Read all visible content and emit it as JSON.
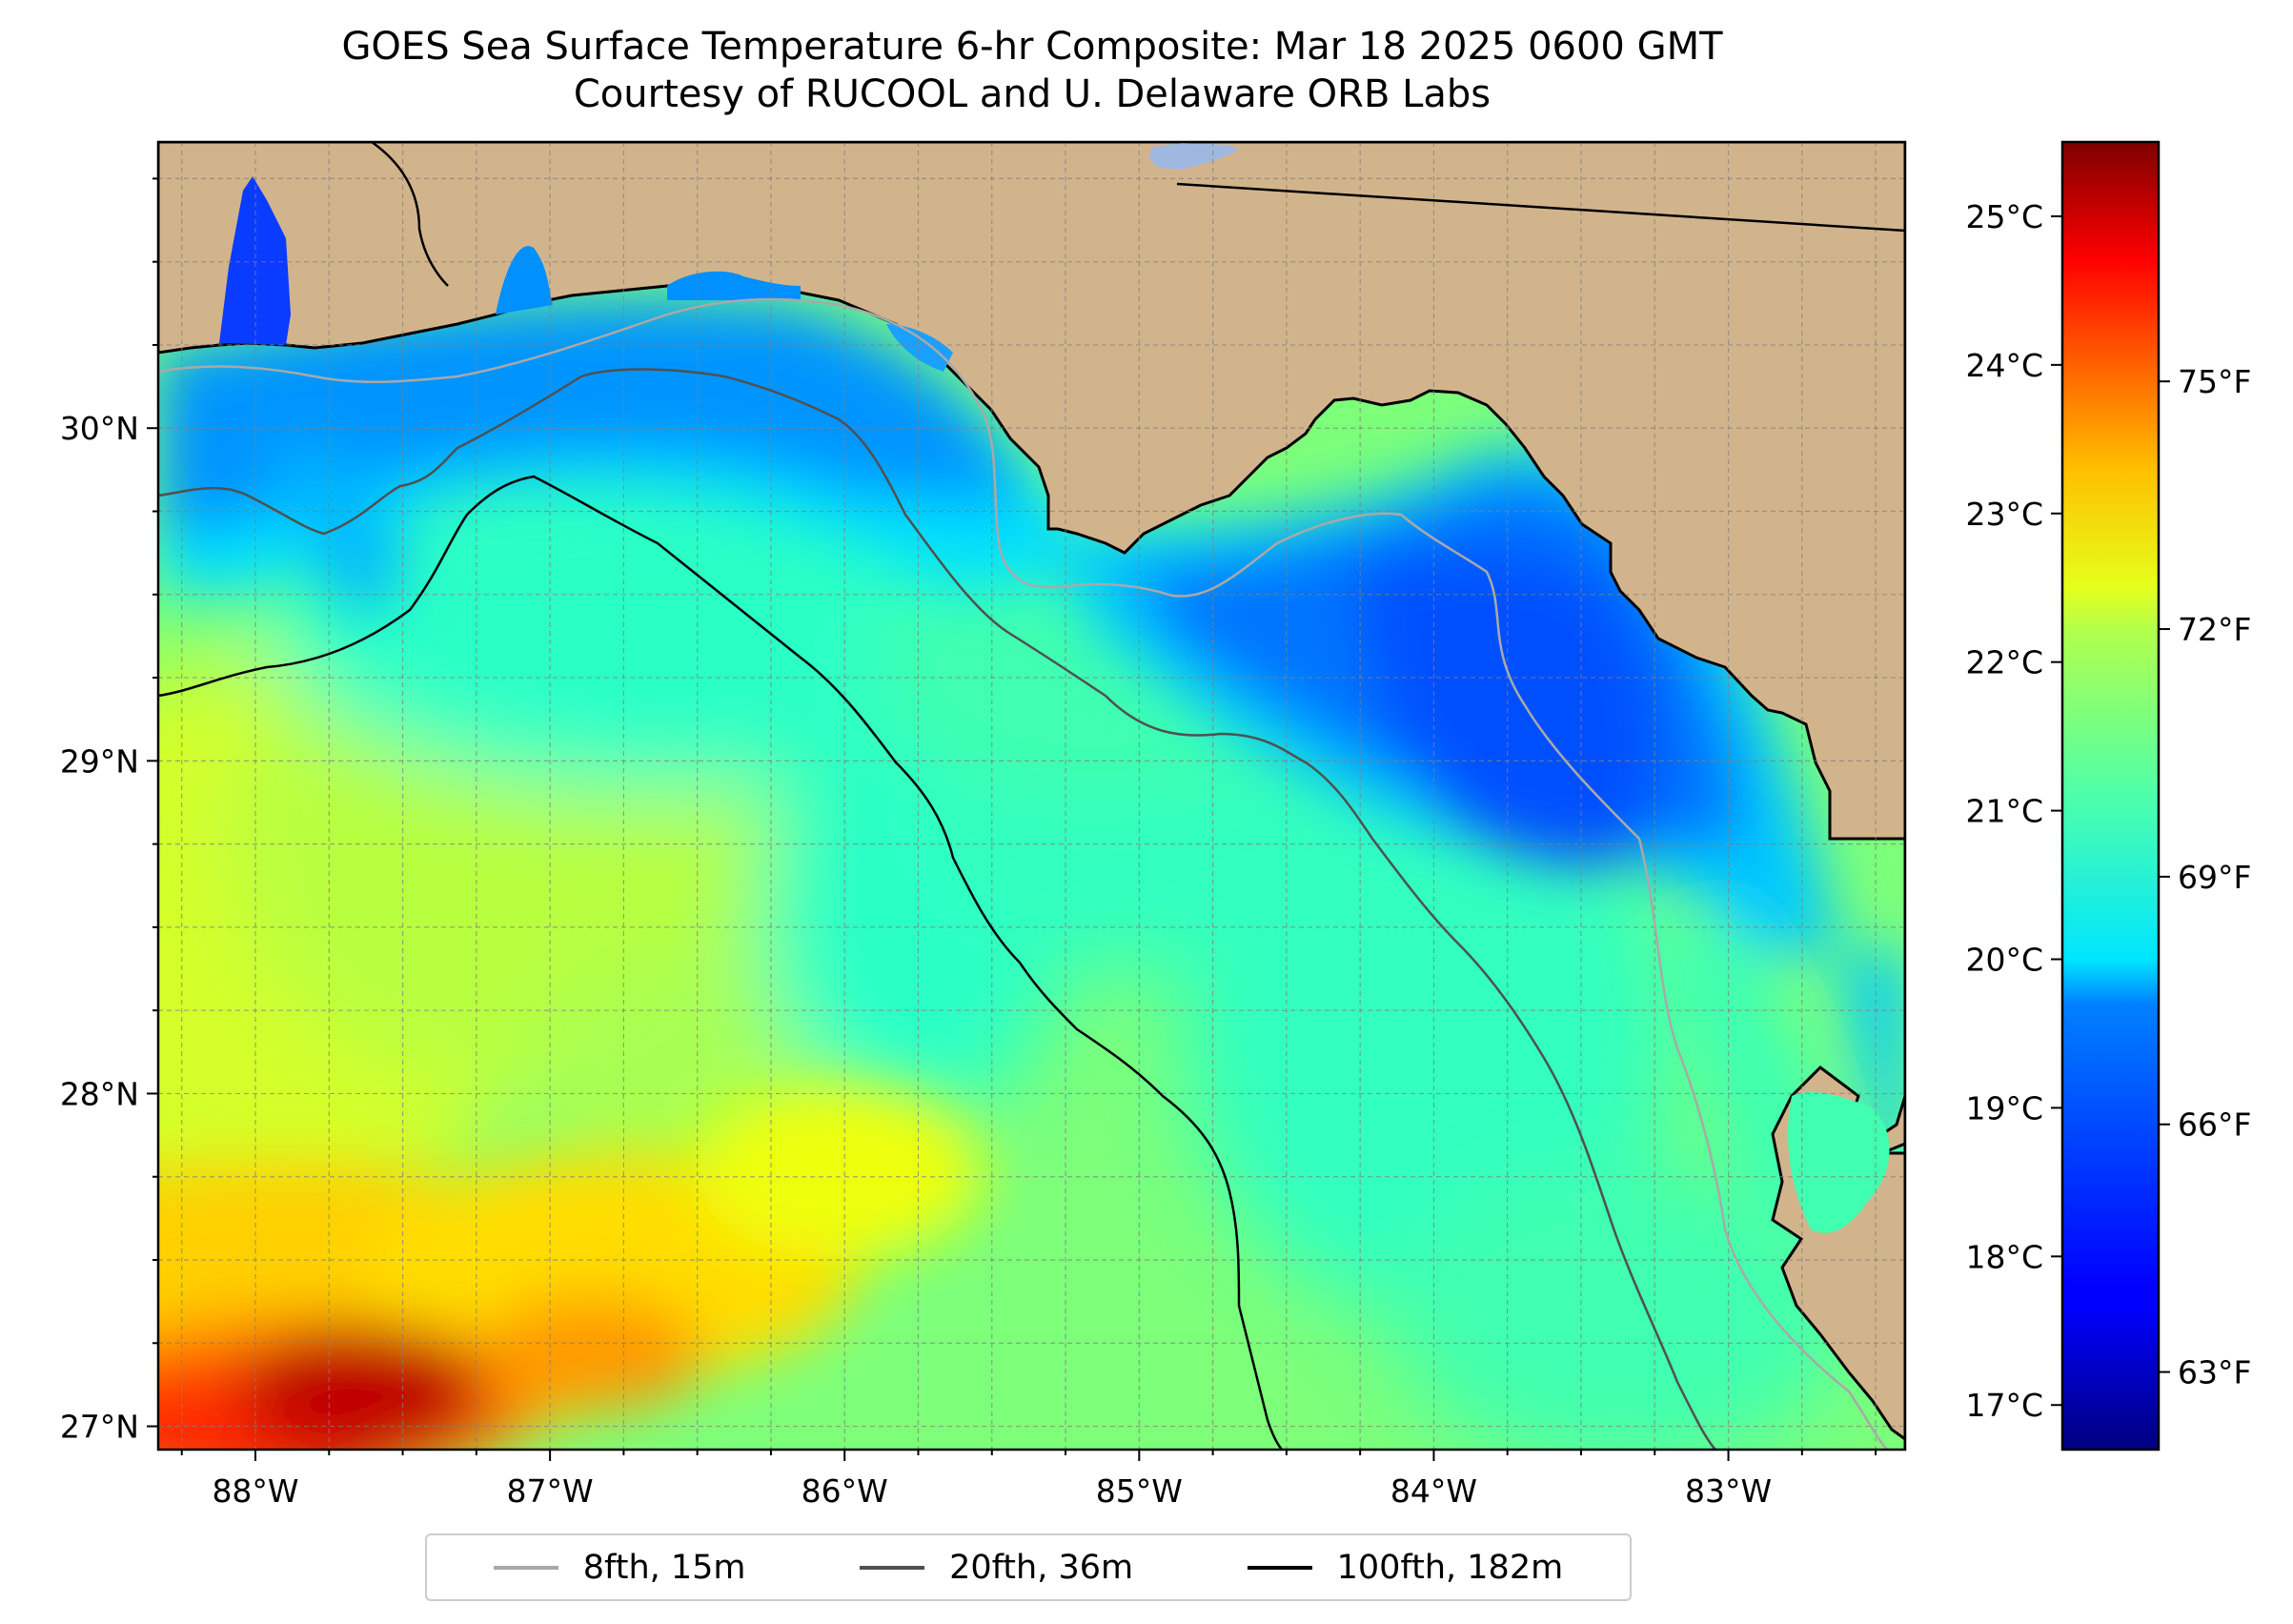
{
  "title": {
    "line1": "GOES Sea Surface Temperature 6-hr Composite: Mar 18 2025 0600 GMT",
    "line2": "Courtesy of RUCOOL and U. Delaware ORB Labs"
  },
  "map": {
    "extent": {
      "lon_min": -88.33,
      "lon_max": -82.4,
      "lat_min": 26.93,
      "lat_max": 30.86
    },
    "land_color": "#d2b48c",
    "coastline_color": "#000000",
    "grid": true,
    "lat_ticks": [
      {
        "value": 30,
        "label": "30°N"
      },
      {
        "value": 29,
        "label": "29°N"
      },
      {
        "value": 28,
        "label": "28°N"
      },
      {
        "value": 27,
        "label": "27°N"
      }
    ],
    "lon_ticks": [
      {
        "value": -88,
        "label": "88°W"
      },
      {
        "value": -87,
        "label": "87°W"
      },
      {
        "value": -86,
        "label": "86°W"
      },
      {
        "value": -85,
        "label": "85°W"
      },
      {
        "value": -84,
        "label": "84°W"
      },
      {
        "value": -83,
        "label": "83°W"
      }
    ]
  },
  "colorbar": {
    "colormap": "jet",
    "min_c": 16.7,
    "max_c": 25.5,
    "celsius_ticks": [
      {
        "value": 25,
        "label": "25°C"
      },
      {
        "value": 24,
        "label": "24°C"
      },
      {
        "value": 23,
        "label": "23°C"
      },
      {
        "value": 22,
        "label": "22°C"
      },
      {
        "value": 21,
        "label": "21°C"
      },
      {
        "value": 20,
        "label": "20°C"
      },
      {
        "value": 19,
        "label": "19°C"
      },
      {
        "value": 18,
        "label": "18°C"
      },
      {
        "value": 17,
        "label": "17°C"
      }
    ],
    "fahrenheit_ticks": [
      {
        "value": 75,
        "label": "75°F"
      },
      {
        "value": 72,
        "label": "72°F"
      },
      {
        "value": 69,
        "label": "69°F"
      },
      {
        "value": 66,
        "label": "66°F"
      },
      {
        "value": 63,
        "label": "63°F"
      }
    ]
  },
  "legend": {
    "items": [
      {
        "label": "8fth, 15m",
        "color": "#a9a9a9"
      },
      {
        "label": "20fth, 36m",
        "color": "#505050"
      },
      {
        "label": "100fth, 182m",
        "color": "#000000"
      }
    ]
  }
}
